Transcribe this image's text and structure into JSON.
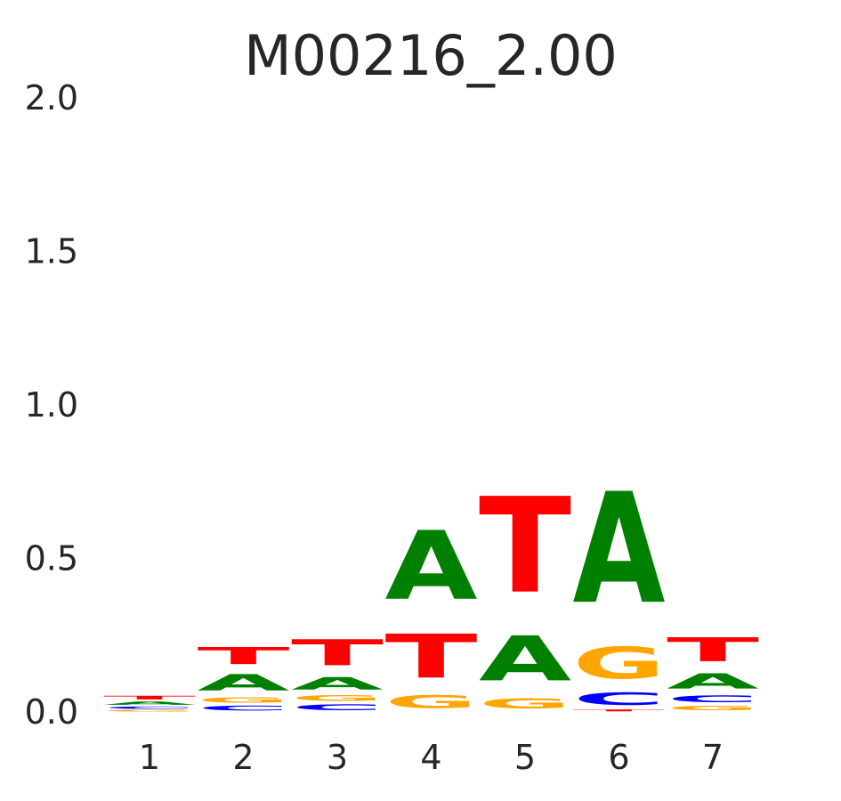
{
  "chart_data": {
    "type": "sequence-logo",
    "title": "M00216_2.00",
    "xlabel": "",
    "ylabel": "",
    "ylim": [
      0,
      2.0
    ],
    "y_ticks": [
      "0.0",
      "0.5",
      "1.0",
      "1.5",
      "2.0"
    ],
    "x_ticks": [
      "1",
      "2",
      "3",
      "4",
      "5",
      "6",
      "7"
    ],
    "grid": false,
    "legend": "none",
    "colors": {
      "A": "#008000",
      "C": "#0000ff",
      "G": "#ffa500",
      "T": "#ff0000"
    },
    "positions": [
      {
        "position": "1",
        "letters": [
          {
            "base": "G",
            "height": 0.008
          },
          {
            "base": "C",
            "height": 0.012
          },
          {
            "base": "A",
            "height": 0.017
          },
          {
            "base": "T",
            "height": 0.019
          }
        ]
      },
      {
        "position": "2",
        "letters": [
          {
            "base": "C",
            "height": 0.025
          },
          {
            "base": "G",
            "height": 0.028
          },
          {
            "base": "A",
            "height": 0.085
          },
          {
            "base": "T",
            "height": 0.089
          }
        ]
      },
      {
        "position": "3",
        "letters": [
          {
            "base": "C",
            "height": 0.03
          },
          {
            "base": "G",
            "height": 0.03
          },
          {
            "base": "A",
            "height": 0.065
          },
          {
            "base": "T",
            "height": 0.135
          }
        ]
      },
      {
        "position": "4",
        "letters": [
          {
            "base": "G",
            "height": 0.065
          },
          {
            "base": "T",
            "height": 0.23
          },
          {
            "base": "A",
            "height": 0.36
          }
        ]
      },
      {
        "position": "5",
        "letters": [
          {
            "base": "G",
            "height": 0.055
          },
          {
            "base": "A",
            "height": 0.235
          },
          {
            "base": "T",
            "height": 0.5
          }
        ]
      },
      {
        "position": "6",
        "letters": [
          {
            "base": "T",
            "height": 0.01
          },
          {
            "base": "C",
            "height": 0.065
          },
          {
            "base": "G",
            "height": 0.165
          },
          {
            "base": "A",
            "height": 0.58
          }
        ]
      },
      {
        "position": "7",
        "letters": [
          {
            "base": "G",
            "height": 0.025
          },
          {
            "base": "C",
            "height": 0.035
          },
          {
            "base": "A",
            "height": 0.08
          },
          {
            "base": "T",
            "height": 0.125
          }
        ]
      }
    ]
  }
}
